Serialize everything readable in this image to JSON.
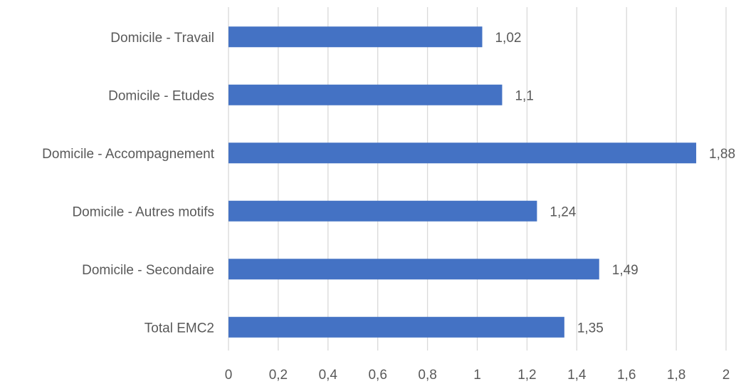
{
  "chart_data": {
    "type": "bar",
    "orientation": "horizontal",
    "categories": [
      "Domicile - Travail",
      "Domicile - Etudes",
      "Domicile - Accompagnement",
      "Domicile - Autres motifs",
      "Domicile - Secondaire",
      "Total EMC2"
    ],
    "values": [
      1.02,
      1.1,
      1.88,
      1.24,
      1.49,
      1.35
    ],
    "value_labels": [
      "1,02",
      "1,1",
      "1,88",
      "1,24",
      "1,49",
      "1,35"
    ],
    "xlim": [
      0,
      2
    ],
    "x_ticks": [
      0,
      0.2,
      0.4,
      0.6,
      0.8,
      1,
      1.2,
      1.4,
      1.6,
      1.8,
      2
    ],
    "x_tick_labels": [
      "0",
      "0,2",
      "0,4",
      "0,6",
      "0,8",
      "1",
      "1,2",
      "1,4",
      "1,6",
      "1,8",
      "2"
    ],
    "grid": "vertical",
    "legend": "none",
    "bar_color": "#4472C4",
    "grid_color": "#D9D9D9",
    "text_color": "#595959"
  }
}
